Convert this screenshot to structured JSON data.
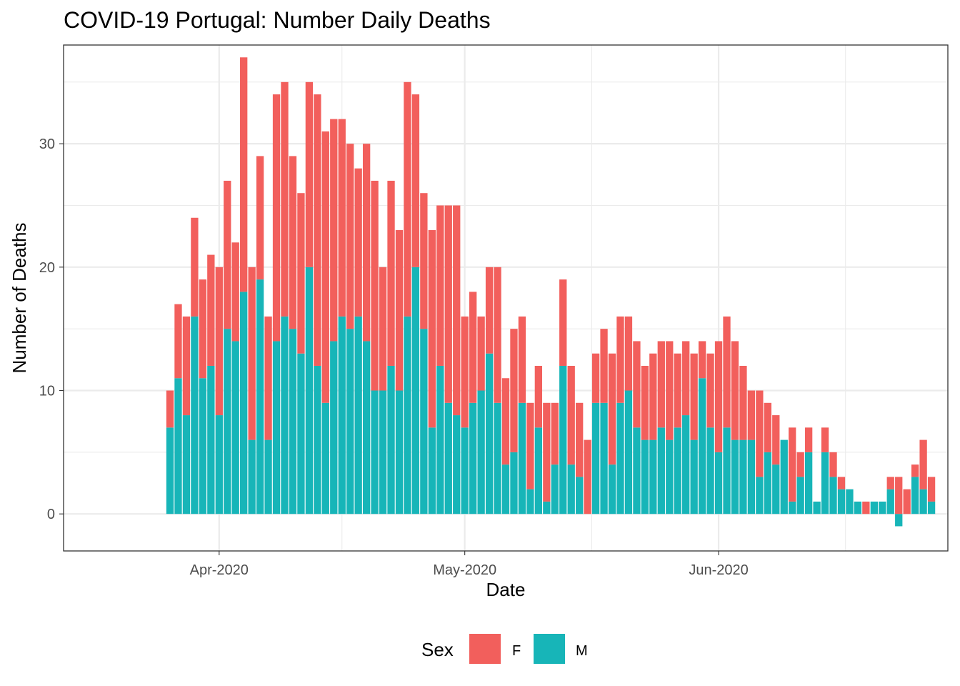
{
  "chart_data": {
    "type": "bar",
    "stacked": true,
    "title": "COVID-19 Portugal: Number Daily Deaths",
    "xlabel": "Date",
    "ylabel": "Number of Deaths",
    "ylim": [
      -3,
      38
    ],
    "y_ticks": [
      0,
      10,
      20,
      30
    ],
    "x_ticks": [
      {
        "label": "Apr-2020",
        "date": "2020-04-01"
      },
      {
        "label": "May-2020",
        "date": "2020-05-01"
      },
      {
        "label": "Jun-2020",
        "date": "2020-06-01"
      }
    ],
    "x_range": [
      "2020-03-13",
      "2020-06-29"
    ],
    "start_date": "2020-03-26",
    "grid": true,
    "legend": {
      "title": "Sex",
      "position": "bottom"
    },
    "series": [
      {
        "name": "M",
        "color": "#17B5B8",
        "values": [
          7,
          11,
          8,
          16,
          11,
          12,
          8,
          15,
          14,
          18,
          6,
          19,
          6,
          14,
          16,
          15,
          13,
          20,
          12,
          9,
          14,
          16,
          15,
          16,
          14,
          10,
          10,
          12,
          10,
          16,
          20,
          15,
          7,
          12,
          9,
          8,
          7,
          9,
          10,
          13,
          9,
          4,
          5,
          9,
          2,
          7,
          1,
          4,
          12,
          4,
          3,
          0,
          9,
          9,
          4,
          9,
          10,
          7,
          6,
          6,
          7,
          6,
          7,
          8,
          6,
          11,
          7,
          5,
          7,
          6,
          6,
          6,
          3,
          5,
          4,
          6,
          1,
          3,
          5,
          1,
          5,
          3,
          2,
          2,
          1,
          0,
          1,
          1,
          2,
          -1,
          0,
          3,
          2,
          1
        ]
      },
      {
        "name": "F",
        "color": "#F25F5C",
        "values": [
          3,
          6,
          8,
          8,
          8,
          9,
          12,
          12,
          8,
          19,
          14,
          10,
          10,
          20,
          19,
          14,
          13,
          15,
          22,
          22,
          18,
          16,
          15,
          12,
          16,
          17,
          10,
          15,
          13,
          19,
          14,
          11,
          16,
          13,
          16,
          17,
          9,
          9,
          6,
          7,
          11,
          7,
          10,
          7,
          7,
          5,
          8,
          5,
          7,
          8,
          6,
          6,
          4,
          6,
          9,
          7,
          6,
          7,
          6,
          7,
          7,
          8,
          6,
          6,
          7,
          3,
          6,
          9,
          9,
          8,
          6,
          4,
          7,
          4,
          4,
          0,
          6,
          2,
          2,
          0,
          2,
          2,
          1,
          0,
          0,
          1,
          0,
          0,
          1,
          3,
          2,
          1,
          4,
          2
        ]
      }
    ]
  }
}
